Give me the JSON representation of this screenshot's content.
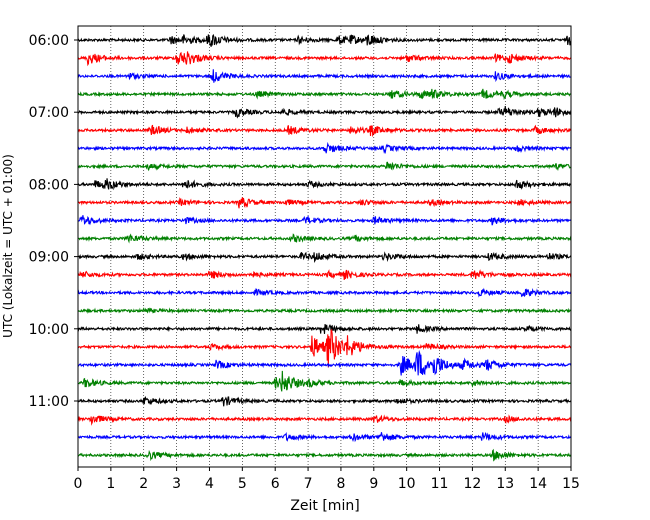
{
  "chart_data": {
    "type": "line",
    "xlabel": "Zeit  [min]",
    "ylabel": "UTC (Lokalzeit = UTC + 01:00)",
    "xlim": [
      0,
      15
    ],
    "x_ticks": [
      "0",
      "1",
      "2",
      "3",
      "4",
      "5",
      "6",
      "7",
      "8",
      "9",
      "10",
      "11",
      "12",
      "13",
      "14",
      "15"
    ],
    "y_ticks": [
      {
        "label": "06:00",
        "row": 0
      },
      {
        "label": "07:00",
        "row": 4
      },
      {
        "label": "08:00",
        "row": 8
      },
      {
        "label": "09:00",
        "row": 12
      },
      {
        "label": "10:00",
        "row": 16
      },
      {
        "label": "11:00",
        "row": 20
      }
    ],
    "grid": "vertical dotted at each minute",
    "trace_colors": [
      "#000000",
      "#ff0000",
      "#0000ff",
      "#008000"
    ],
    "rows": [
      {
        "start": "06:00",
        "events": [
          [
            2.8,
            0.45
          ],
          [
            3.2,
            0.4
          ],
          [
            3.9,
            0.35
          ],
          [
            4.0,
            0.5
          ],
          [
            6.7,
            0.35
          ],
          [
            7.9,
            0.45
          ],
          [
            8.3,
            0.35
          ],
          [
            8.8,
            0.6
          ],
          [
            14.9,
            0.55
          ]
        ]
      },
      {
        "start": "06:15",
        "events": [
          [
            0.3,
            0.7
          ],
          [
            3.0,
            0.9
          ],
          [
            3.3,
            0.45
          ],
          [
            10.0,
            0.4
          ],
          [
            12.7,
            0.35
          ],
          [
            13.1,
            0.45
          ]
        ]
      },
      {
        "start": "06:30",
        "events": [
          [
            1.5,
            0.35
          ],
          [
            4.1,
            0.7
          ],
          [
            12.7,
            0.45
          ]
        ]
      },
      {
        "start": "06:45",
        "events": [
          [
            5.4,
            0.35
          ],
          [
            9.5,
            0.5
          ],
          [
            10.4,
            0.4
          ],
          [
            10.7,
            0.4
          ],
          [
            12.3,
            0.5
          ],
          [
            12.9,
            0.3
          ]
        ]
      },
      {
        "start": "07:00",
        "events": [
          [
            4.8,
            0.5
          ],
          [
            6.2,
            0.3
          ],
          [
            12.8,
            0.35
          ],
          [
            13.0,
            0.4
          ],
          [
            14.0,
            0.45
          ],
          [
            14.5,
            0.4
          ]
        ]
      },
      {
        "start": "07:15",
        "events": [
          [
            2.2,
            0.55
          ],
          [
            3.3,
            0.3
          ],
          [
            6.4,
            0.45
          ],
          [
            8.3,
            0.4
          ],
          [
            8.9,
            0.45
          ],
          [
            13.9,
            0.4
          ]
        ]
      },
      {
        "start": "07:30",
        "events": [
          [
            7.5,
            0.6
          ],
          [
            9.3,
            0.35
          ],
          [
            13.3,
            0.35
          ]
        ]
      },
      {
        "start": "07:45",
        "events": [
          [
            2.1,
            0.3
          ],
          [
            9.4,
            0.5
          ],
          [
            14.5,
            0.3
          ]
        ]
      },
      {
        "start": "08:00",
        "events": [
          [
            0.5,
            0.4
          ],
          [
            0.8,
            0.55
          ],
          [
            3.2,
            0.55
          ],
          [
            7.0,
            0.3
          ],
          [
            13.3,
            0.55
          ]
        ]
      },
      {
        "start": "08:15",
        "events": [
          [
            3.1,
            0.3
          ],
          [
            4.9,
            0.6
          ],
          [
            6.3,
            0.3
          ],
          [
            8.6,
            0.3
          ],
          [
            10.7,
            0.3
          ],
          [
            13.4,
            0.3
          ]
        ]
      },
      {
        "start": "08:30",
        "events": [
          [
            0.1,
            0.6
          ],
          [
            3.2,
            0.35
          ],
          [
            6.9,
            0.4
          ],
          [
            9.0,
            0.4
          ],
          [
            12.6,
            0.4
          ]
        ]
      },
      {
        "start": "08:45",
        "events": [
          [
            1.5,
            0.45
          ],
          [
            6.5,
            0.4
          ],
          [
            8.4,
            0.3
          ]
        ]
      },
      {
        "start": "09:00",
        "events": [
          [
            1.8,
            0.3
          ],
          [
            3.2,
            0.3
          ],
          [
            6.8,
            0.4
          ],
          [
            7.2,
            0.35
          ],
          [
            9.3,
            0.4
          ],
          [
            12.5,
            0.4
          ],
          [
            14.3,
            0.35
          ]
        ]
      },
      {
        "start": "09:15",
        "events": [
          [
            0.1,
            0.35
          ],
          [
            4.0,
            0.45
          ],
          [
            5.2,
            0.3
          ],
          [
            7.6,
            0.3
          ],
          [
            8.1,
            0.4
          ],
          [
            12.0,
            0.6
          ]
        ]
      },
      {
        "start": "09:30",
        "events": [
          [
            5.4,
            0.3
          ],
          [
            12.2,
            0.35
          ],
          [
            13.5,
            0.45
          ]
        ]
      },
      {
        "start": "09:45",
        "events": [
          [
            2.0,
            0.2
          ]
        ]
      },
      {
        "start": "10:00",
        "events": [
          [
            7.4,
            0.6
          ],
          [
            10.3,
            0.45
          ],
          [
            13.6,
            0.3
          ]
        ]
      },
      {
        "start": "10:15",
        "events": [
          [
            4.0,
            0.3
          ],
          [
            7.1,
            1.3
          ],
          [
            7.6,
            2.2
          ],
          [
            8.2,
            0.8
          ],
          [
            10.6,
            0.35
          ]
        ]
      },
      {
        "start": "10:30",
        "events": [
          [
            4.2,
            0.45
          ],
          [
            9.8,
            1.2
          ],
          [
            10.3,
            1.6
          ],
          [
            10.8,
            0.9
          ],
          [
            11.7,
            0.5
          ],
          [
            12.4,
            0.6
          ]
        ]
      },
      {
        "start": "10:45",
        "events": [
          [
            0.2,
            0.5
          ],
          [
            6.0,
            0.6
          ],
          [
            6.2,
            1.0
          ],
          [
            7.0,
            0.3
          ],
          [
            9.8,
            0.3
          ],
          [
            12.0,
            0.3
          ]
        ]
      },
      {
        "start": "11:00",
        "events": [
          [
            2.0,
            0.45
          ],
          [
            4.4,
            0.55
          ],
          [
            9.7,
            0.3
          ]
        ]
      },
      {
        "start": "11:15",
        "events": [
          [
            0.4,
            0.55
          ],
          [
            9.0,
            0.4
          ],
          [
            13.0,
            0.3
          ]
        ]
      },
      {
        "start": "11:30",
        "events": [
          [
            6.3,
            0.35
          ],
          [
            8.3,
            0.4
          ],
          [
            9.2,
            0.55
          ],
          [
            12.3,
            0.45
          ]
        ]
      },
      {
        "start": "11:45",
        "events": [
          [
            2.1,
            0.5
          ],
          [
            12.6,
            0.55
          ]
        ]
      }
    ]
  }
}
